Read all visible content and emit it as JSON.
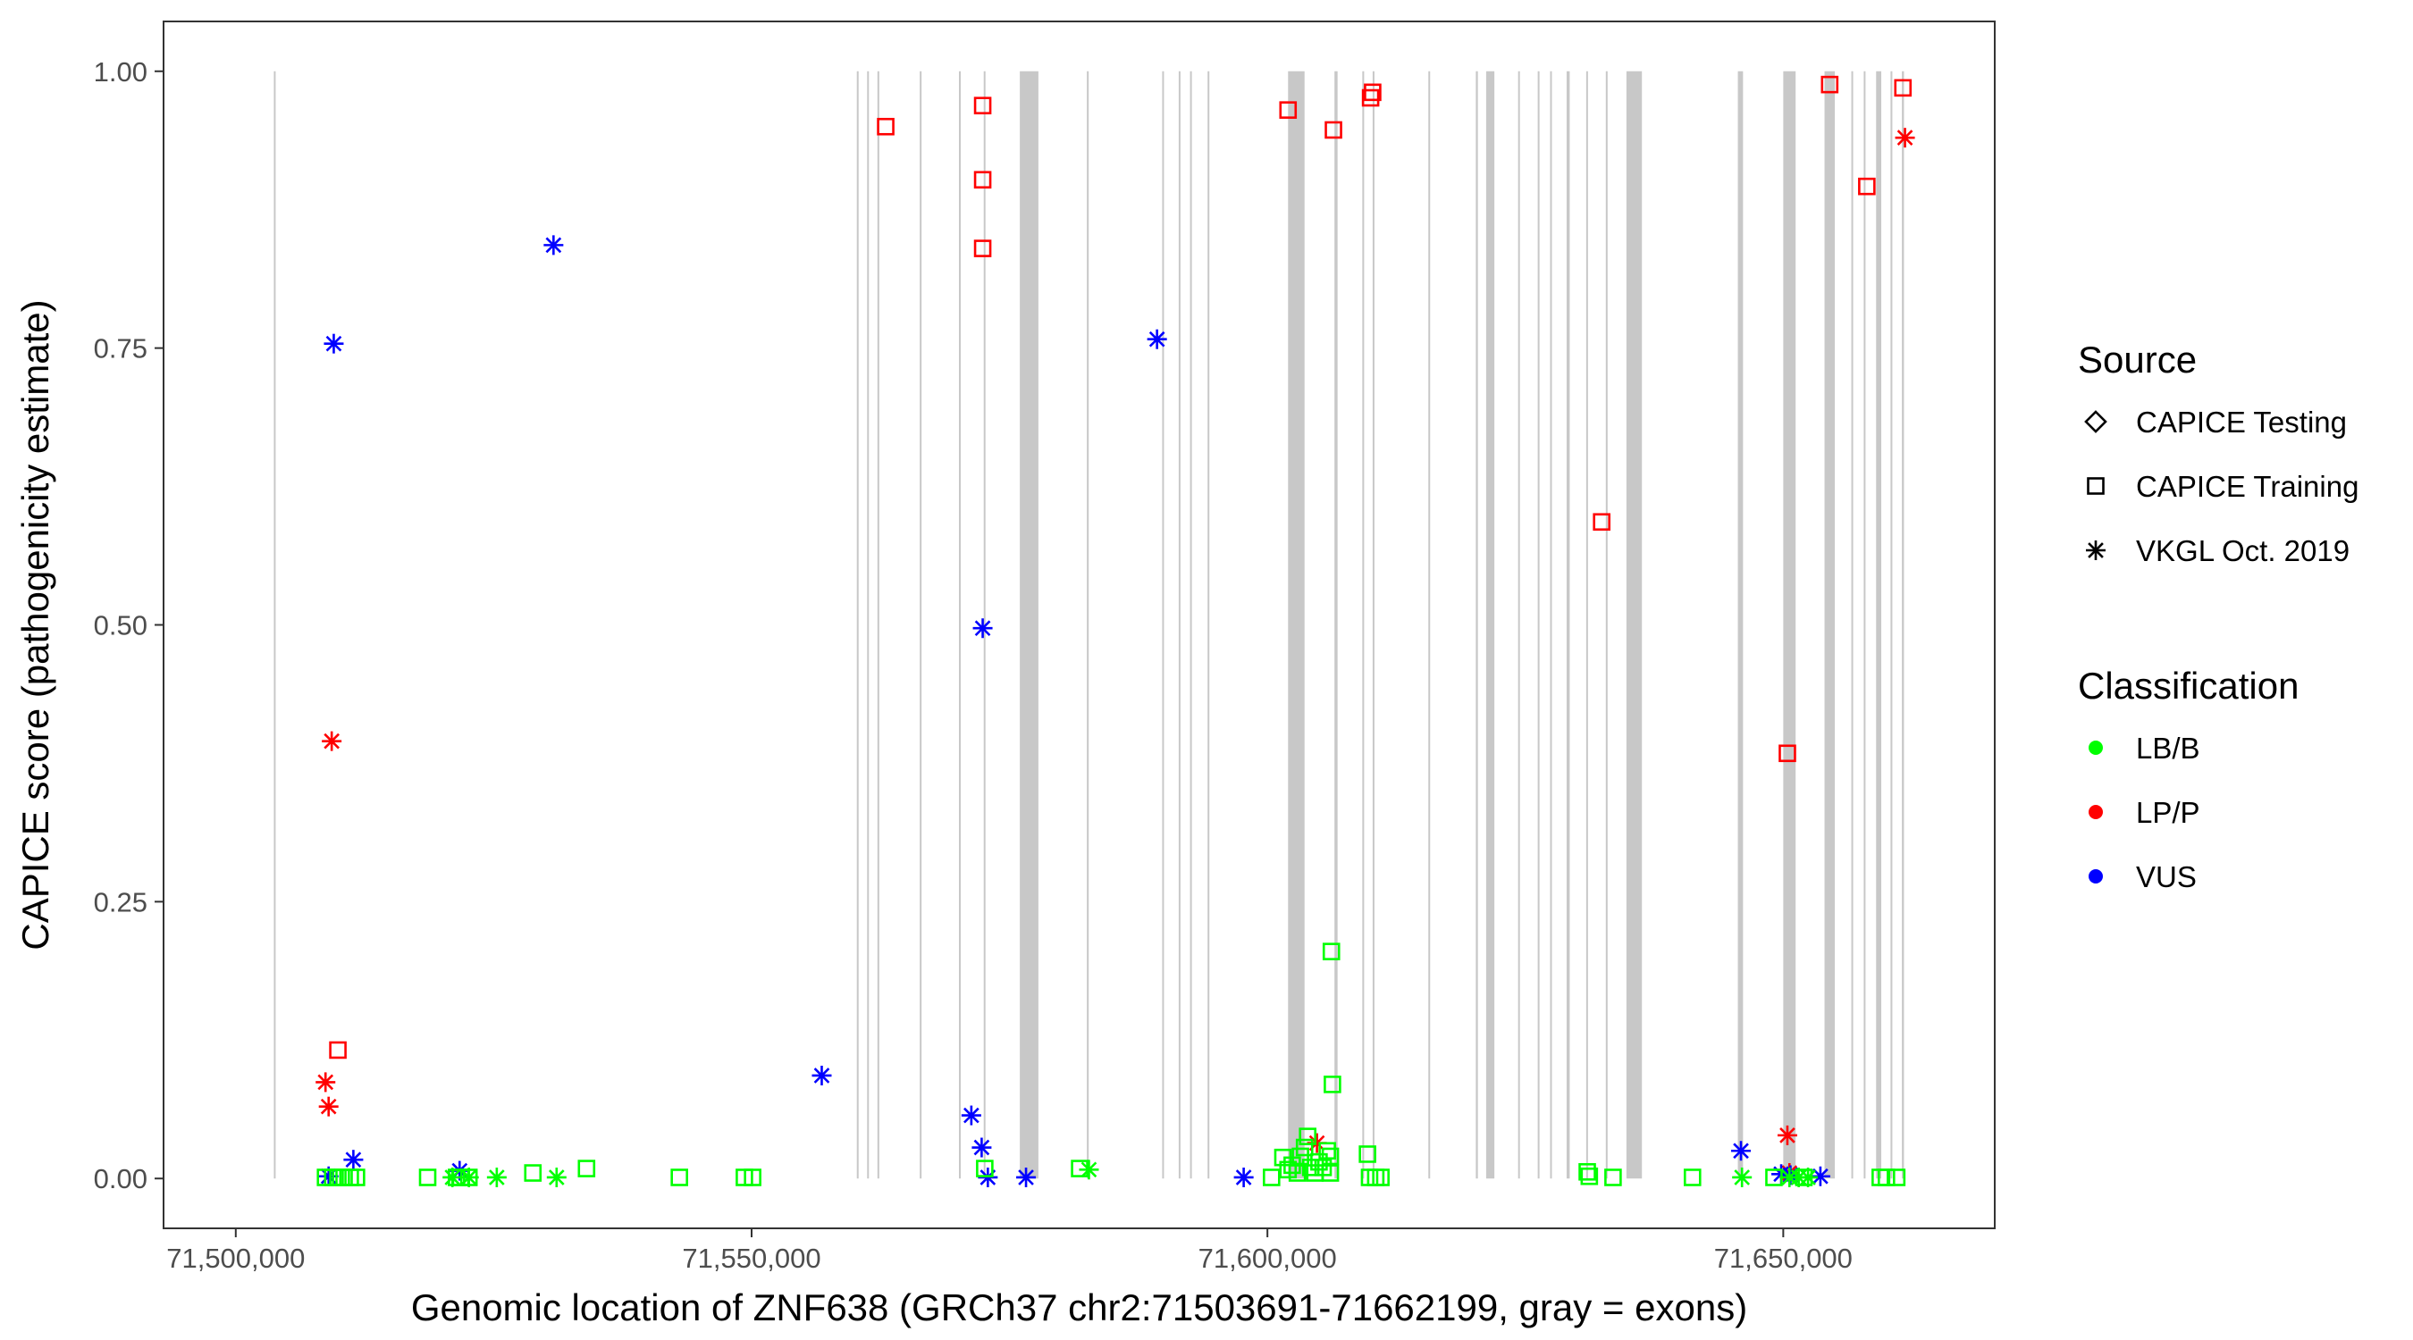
{
  "chart_data": {
    "type": "scatter",
    "xlabel": "Genomic location of ZNF638 (GRCh37 chr2:71503691-71662199, gray = exons)",
    "ylabel": "CAPICE score (pathogenicity estimate)",
    "xlim": [
      71493000,
      71670500
    ],
    "ylim": [
      -0.045,
      1.045
    ],
    "x_ticks": [
      71500000,
      71550000,
      71600000,
      71650000
    ],
    "x_tick_labels": [
      "71,500,000",
      "71,550,000",
      "71,600,000",
      "71,650,000"
    ],
    "y_ticks": [
      0,
      0.25,
      0.5,
      0.75,
      1
    ],
    "y_tick_labels": [
      "0.00",
      "0.25",
      "0.50",
      "0.75",
      "1.00"
    ],
    "grid": false,
    "exons": [
      [
        71503691,
        71503850
      ],
      [
        71560200,
        71560320
      ],
      [
        71561200,
        71561320
      ],
      [
        71562200,
        71562320
      ],
      [
        71566300,
        71566420
      ],
      [
        71570100,
        71570220
      ],
      [
        71572500,
        71572620
      ],
      [
        71576000,
        71577800
      ],
      [
        71582500,
        71582620
      ],
      [
        71589800,
        71589920
      ],
      [
        71591400,
        71591520
      ],
      [
        71592500,
        71592620
      ],
      [
        71594200,
        71594320
      ],
      [
        71602000,
        71603600
      ],
      [
        71606500,
        71606800
      ],
      [
        71609200,
        71609320
      ],
      [
        71610200,
        71610320
      ],
      [
        71615600,
        71615720
      ],
      [
        71620200,
        71620400
      ],
      [
        71621200,
        71622000
      ],
      [
        71624300,
        71624420
      ],
      [
        71626200,
        71626320
      ],
      [
        71627400,
        71627520
      ],
      [
        71629000,
        71629300
      ],
      [
        71630900,
        71631020
      ],
      [
        71632800,
        71632920
      ],
      [
        71634800,
        71636300
      ],
      [
        71645600,
        71646100
      ],
      [
        71650000,
        71651200
      ],
      [
        71654000,
        71655000
      ],
      [
        71656600,
        71656720
      ],
      [
        71657800,
        71657920
      ],
      [
        71659000,
        71659500
      ],
      [
        71660400,
        71660520
      ],
      [
        71661500,
        71661700
      ]
    ],
    "legend": {
      "source": {
        "title": "Source",
        "entries": [
          {
            "label": "CAPICE Testing",
            "shape": "diamond"
          },
          {
            "label": "CAPICE Training",
            "shape": "square"
          },
          {
            "label": "VKGL Oct. 2019",
            "shape": "asterisk"
          }
        ]
      },
      "classification": {
        "title": "Classification",
        "entries": [
          {
            "label": "LB/B",
            "color": "#00ff00"
          },
          {
            "label": "LP/P",
            "color": "#ff0000"
          },
          {
            "label": "VUS",
            "color": "#0000ff"
          }
        ]
      },
      "placement": "right"
    },
    "series": [
      {
        "source": "CAPICE Training",
        "classification": "LP/P",
        "shape": "square",
        "color": "#ff0000",
        "x": [
          71563000,
          71572400,
          71572400,
          71572400,
          71602000,
          71606400,
          71610000,
          71610200,
          71632400,
          71650400,
          71654500,
          71658100,
          71661600,
          71509900
        ],
        "y": [
          0.95,
          0.969,
          0.902,
          0.84,
          0.965,
          0.947,
          0.976,
          0.981,
          0.593,
          0.384,
          0.988,
          0.896,
          0.985,
          0.116
        ]
      },
      {
        "source": "VKGL Oct. 2019",
        "classification": "LP/P",
        "shape": "asterisk",
        "color": "#ff0000",
        "x": [
          71509300,
          71508700,
          71509000,
          71604800,
          71650400,
          71650600,
          71661800
        ],
        "y": [
          0.395,
          0.087,
          0.065,
          0.032,
          0.039,
          0.005,
          0.94
        ]
      },
      {
        "source": "VKGL Oct. 2019",
        "classification": "VUS",
        "shape": "asterisk",
        "color": "#0000ff",
        "x": [
          71509500,
          71530800,
          71509000,
          71511400,
          71521700,
          71556800,
          71571300,
          71572400,
          71572300,
          71572900,
          71576600,
          71589300,
          71597700,
          71645900,
          71649800,
          71650700,
          71653600
        ],
        "y": [
          0.754,
          0.843,
          0.002,
          0.017,
          0.007,
          0.093,
          0.057,
          0.497,
          0.028,
          0.001,
          0.001,
          0.758,
          0.001,
          0.025,
          0.004,
          0.003,
          0.002
        ]
      },
      {
        "source": "CAPICE Training",
        "classification": "LB/B",
        "shape": "square",
        "color": "#00ff00",
        "x": [
          71508700,
          71509400,
          71509900,
          71510500,
          71511100,
          71511700,
          71518600,
          71521400,
          71521800,
          71522600,
          71528800,
          71534000,
          71543000,
          71549300,
          71550100,
          71572600,
          71581800,
          71600400,
          71601500,
          71602000,
          71602400,
          71602900,
          71603200,
          71603600,
          71603900,
          71604200,
          71604600,
          71605000,
          71605400,
          71605800,
          71606100,
          71606200,
          71606300,
          71606100,
          71609700,
          71609900,
          71610500,
          71611000,
          71631000,
          71631200,
          71633500,
          71641200,
          71649100,
          71652000,
          71659400,
          71660000,
          71661000
        ],
        "y": [
          0.001,
          0.001,
          0.001,
          0.001,
          0.001,
          0.001,
          0.001,
          0.001,
          0.001,
          0.001,
          0.005,
          0.009,
          0.001,
          0.001,
          0.001,
          0.009,
          0.009,
          0.001,
          0.019,
          0.008,
          0.012,
          0.005,
          0.02,
          0.028,
          0.038,
          0.01,
          0.005,
          0.015,
          0.01,
          0.025,
          0.02,
          0.205,
          0.085,
          0.005,
          0.022,
          0.001,
          0.001,
          0.001,
          0.006,
          0.002,
          0.001,
          0.001,
          0.001,
          0.001,
          0.001,
          0.001,
          0.001
        ]
      },
      {
        "source": "VKGL Oct. 2019",
        "classification": "LB/B",
        "shape": "asterisk",
        "color": "#00ff00",
        "x": [
          71521000,
          71522600,
          71525300,
          71531100,
          71582700,
          71646000,
          71650600,
          71651500,
          71652400
        ],
        "y": [
          0.001,
          0.001,
          0.001,
          0.001,
          0.008,
          0.001,
          0.001,
          0.001,
          0.001
        ]
      }
    ]
  }
}
